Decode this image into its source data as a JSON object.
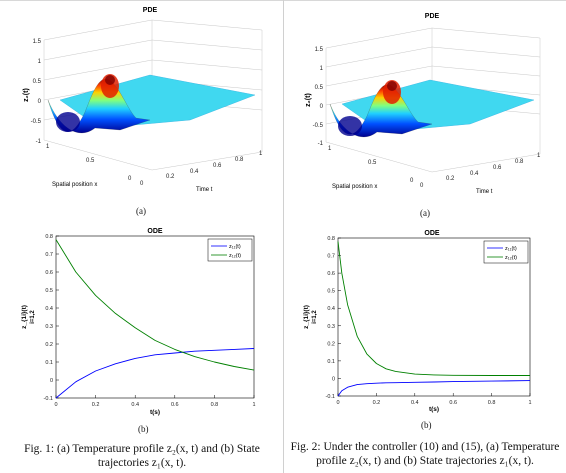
{
  "figures": [
    {
      "pde": {
        "title": "PDE",
        "zlabel": "z₂(t)",
        "xlabel": "Spatial position x",
        "ylabel": "Time t",
        "z_ticks": [
          "1.5",
          "1",
          "0.5",
          "0",
          "-0.5",
          "-1"
        ],
        "x_ticks": [
          "1",
          "0.5",
          "0"
        ],
        "t_ticks": [
          "0",
          "0.2",
          "0.4",
          "0.6",
          "0.8",
          "1"
        ]
      },
      "pde_sub": "(a)",
      "ode": {
        "title": "ODE",
        "xlabel": "t(s)",
        "ylabel": "z_{1i}(t)",
        "ylabel2": "i=1,2",
        "legend": [
          "z₁₁(t)",
          "z₁₂(t)"
        ],
        "y_ticks": [
          "0.8",
          "0.7",
          "0.6",
          "0.5",
          "0.4",
          "0.3",
          "0.2",
          "0.1",
          "0",
          "-0.1"
        ],
        "x_ticks": [
          "0",
          "0.2",
          "0.4",
          "0.6",
          "0.8",
          "1"
        ]
      },
      "ode_sub": "(b)",
      "caption": "Fig. 1: (a) Temperature profile z₂(x, t) and (b) State trajectories z₁(x, t)."
    },
    {
      "pde": {
        "title": "PDE",
        "zlabel": "z₂(t)",
        "xlabel": "Spatial position x",
        "ylabel": "Time t",
        "z_ticks": [
          "1.5",
          "1",
          "0.5",
          "0",
          "-0.5",
          "-1"
        ],
        "x_ticks": [
          "1",
          "0.5",
          "0"
        ],
        "t_ticks": [
          "0",
          "0.2",
          "0.4",
          "0.6",
          "0.8",
          "1"
        ]
      },
      "pde_sub": "(a)",
      "ode": {
        "title": "ODE",
        "xlabel": "t(s)",
        "ylabel": "z_{1i}(t)",
        "ylabel2": "i=1,2",
        "legend": [
          "z₁₁(t)",
          "z₁₂(t)"
        ],
        "y_ticks": [
          "0.8",
          "0.7",
          "0.6",
          "0.5",
          "0.4",
          "0.3",
          "0.2",
          "0.1",
          "0",
          "-0.1"
        ],
        "x_ticks": [
          "0",
          "0.2",
          "0.4",
          "0.6",
          "0.8",
          "1"
        ]
      },
      "ode_sub": "(b)",
      "caption": "Fig. 2: Under the controller (10) and (15), (a) Temperature profile z₂(x, t) and (b) State trajectories z₁(x, t)."
    }
  ],
  "chart_data": [
    {
      "type": "line",
      "title": "ODE",
      "xlabel": "t(s)",
      "ylabel": "z_{1i}(t) i=1,2",
      "xlim": [
        0,
        1
      ],
      "ylim": [
        -0.1,
        0.8
      ],
      "x": [
        0,
        0.1,
        0.2,
        0.3,
        0.4,
        0.5,
        0.6,
        0.7,
        0.8,
        0.9,
        1.0
      ],
      "series": [
        {
          "name": "z₁₁(t)",
          "color": "#0000ff",
          "values": [
            -0.1,
            -0.01,
            0.05,
            0.09,
            0.12,
            0.14,
            0.15,
            0.16,
            0.165,
            0.17,
            0.175
          ]
        },
        {
          "name": "z₁₂(t)",
          "color": "#008000",
          "values": [
            0.78,
            0.6,
            0.47,
            0.37,
            0.29,
            0.22,
            0.17,
            0.13,
            0.1,
            0.075,
            0.055
          ]
        }
      ]
    },
    {
      "type": "line",
      "title": "ODE",
      "xlabel": "t(s)",
      "ylabel": "z_{1i}(t) i=1,2",
      "xlim": [
        0,
        1
      ],
      "ylim": [
        -0.1,
        0.8
      ],
      "x": [
        0,
        0.02,
        0.05,
        0.1,
        0.15,
        0.2,
        0.25,
        0.3,
        0.4,
        0.5,
        0.6,
        0.8,
        1.0
      ],
      "series": [
        {
          "name": "z₁₁(t)",
          "color": "#0000ff",
          "values": [
            -0.1,
            -0.07,
            -0.05,
            -0.035,
            -0.03,
            -0.027,
            -0.025,
            -0.024,
            -0.022,
            -0.02,
            -0.018,
            -0.015,
            -0.012
          ]
        },
        {
          "name": "z₁₂(t)",
          "color": "#008000",
          "values": [
            0.78,
            0.6,
            0.42,
            0.24,
            0.14,
            0.085,
            0.055,
            0.04,
            0.025,
            0.02,
            0.018,
            0.017,
            0.017
          ]
        }
      ]
    }
  ]
}
